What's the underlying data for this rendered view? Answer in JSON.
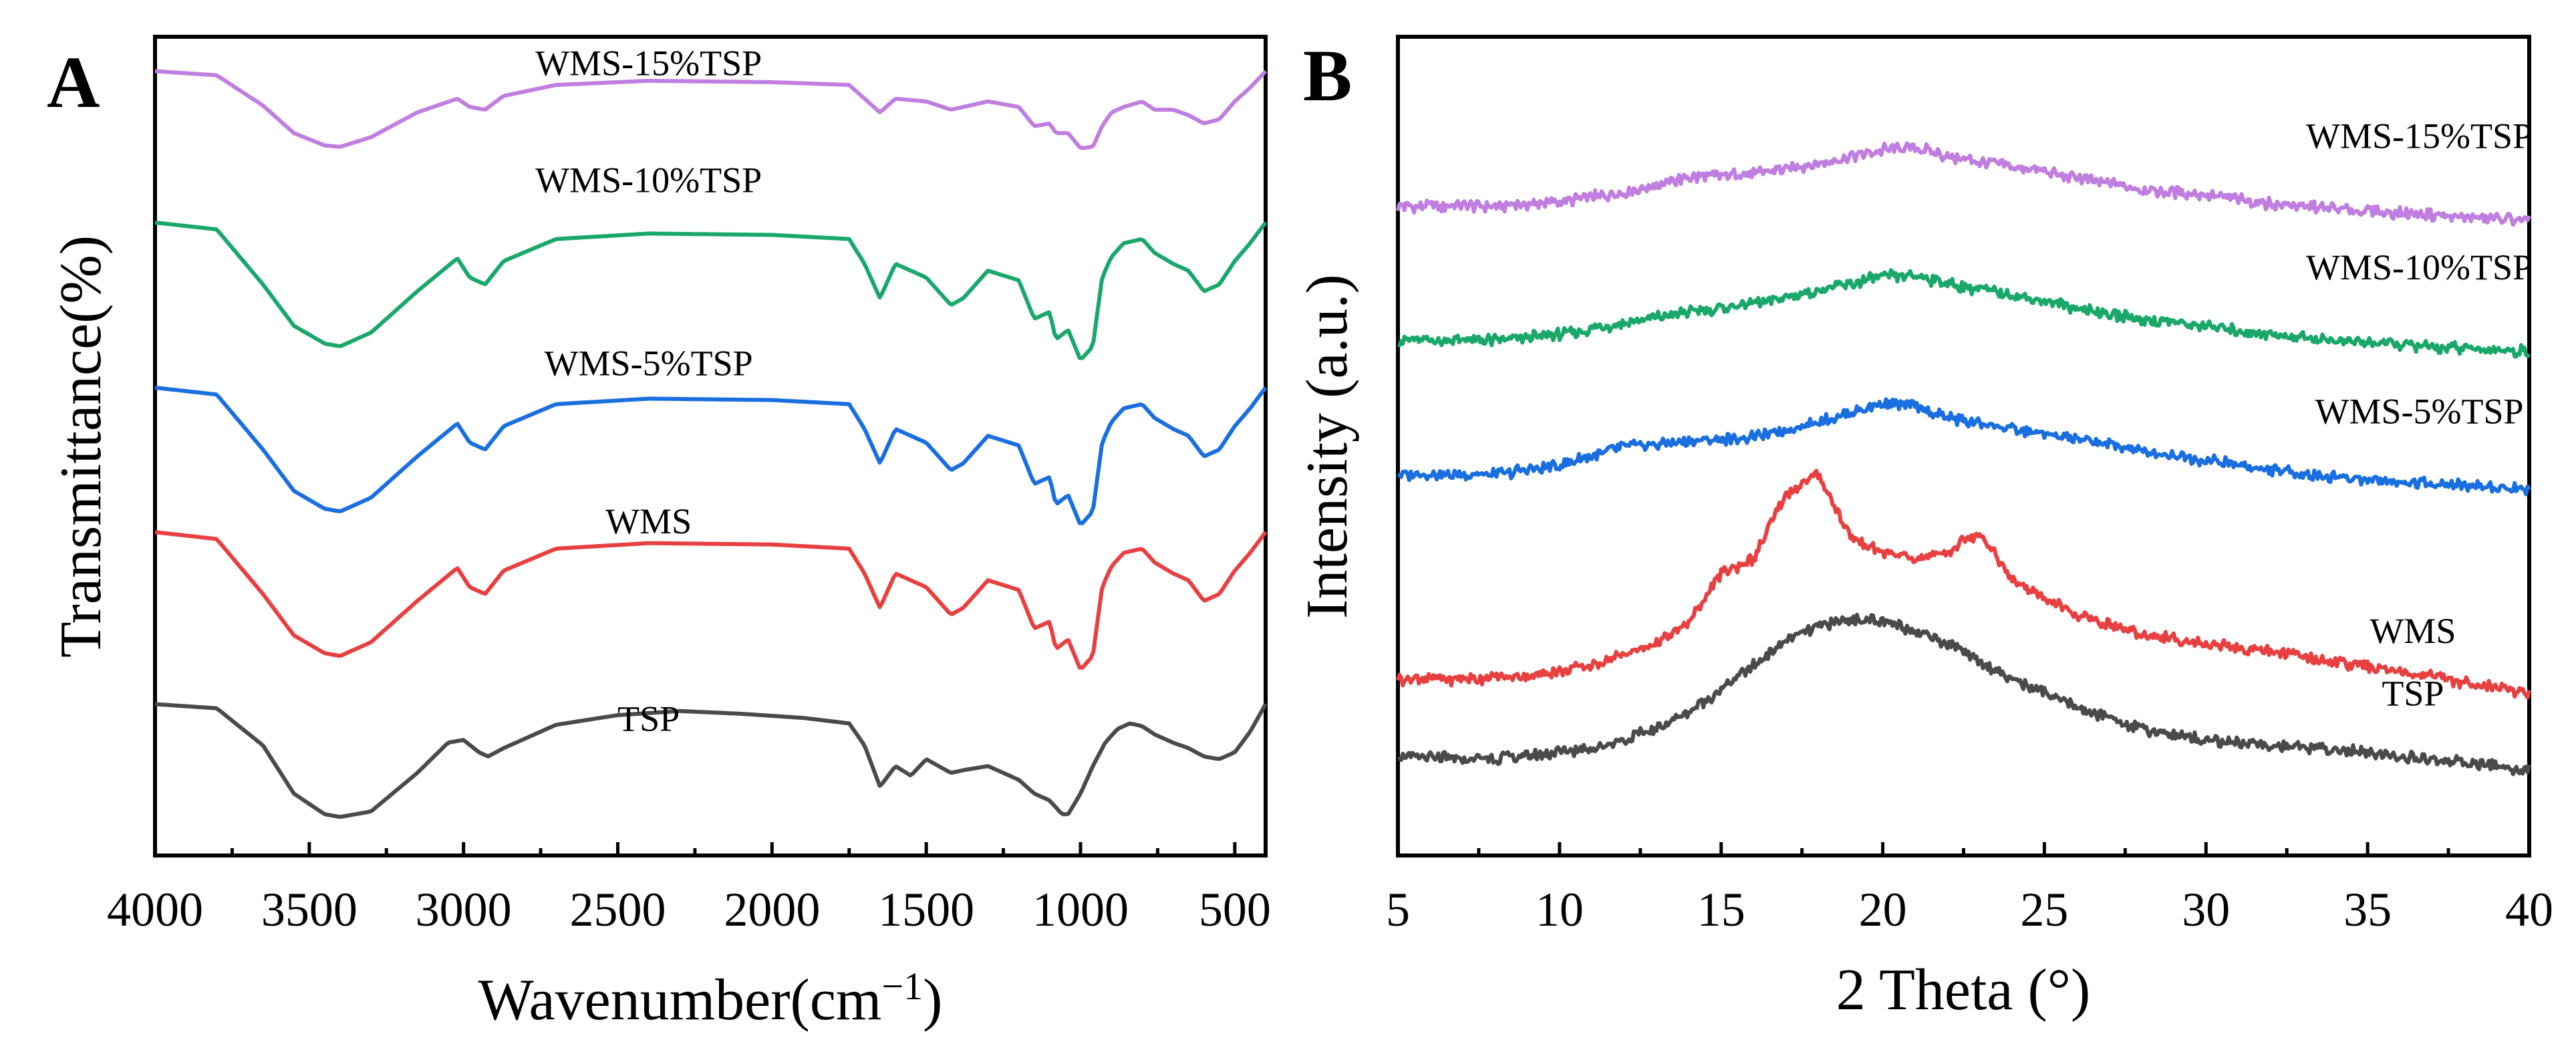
{
  "chart_data": [
    {
      "panel": "A",
      "type": "line",
      "title": "",
      "xlabel": "Wavenumber(cm",
      "xlabel_sup": "−1",
      "xlabel_close": ")",
      "ylabel": "Transmittance(%)",
      "xlim": [
        4000,
        400
      ],
      "x_reversed": true,
      "xticks": [
        4000,
        3500,
        3000,
        2500,
        2000,
        1500,
        1000,
        500
      ],
      "y_ticks_shown": false,
      "series": [
        {
          "name": "WMS-15%TSP",
          "color": "#c07ee0",
          "offset": 4.6,
          "x": [
            4000,
            3800,
            3650,
            3550,
            3450,
            3400,
            3300,
            3150,
            3020,
            2980,
            2930,
            2870,
            2700,
            2400,
            2000,
            1750,
            1700,
            1650,
            1600,
            1500,
            1420,
            1380,
            1300,
            1200,
            1150,
            1100,
            1080,
            1040,
            1000,
            960,
            930,
            900,
            860,
            800,
            760,
            700,
            650,
            600,
            550,
            500,
            450,
            400
          ],
          "y": [
            1.0,
            0.97,
            0.75,
            0.55,
            0.46,
            0.45,
            0.52,
            0.7,
            0.8,
            0.74,
            0.72,
            0.82,
            0.9,
            0.93,
            0.92,
            0.9,
            0.8,
            0.7,
            0.8,
            0.78,
            0.72,
            0.74,
            0.78,
            0.74,
            0.6,
            0.62,
            0.55,
            0.55,
            0.44,
            0.45,
            0.6,
            0.7,
            0.74,
            0.78,
            0.72,
            0.72,
            0.68,
            0.62,
            0.65,
            0.78,
            0.88,
            1.0
          ]
        },
        {
          "name": "WMS-10%TSP",
          "color": "#1aa86a",
          "offset": 3.5,
          "x": [
            4000,
            3800,
            3650,
            3550,
            3450,
            3400,
            3300,
            3150,
            3020,
            2980,
            2930,
            2870,
            2700,
            2400,
            2000,
            1750,
            1700,
            1650,
            1600,
            1500,
            1420,
            1380,
            1300,
            1200,
            1150,
            1100,
            1080,
            1040,
            1000,
            960,
            930,
            900,
            860,
            800,
            760,
            700,
            650,
            600,
            550,
            500,
            450,
            400
          ],
          "y": [
            1.0,
            0.95,
            0.55,
            0.25,
            0.12,
            0.1,
            0.2,
            0.5,
            0.74,
            0.6,
            0.55,
            0.72,
            0.88,
            0.92,
            0.91,
            0.88,
            0.7,
            0.45,
            0.7,
            0.6,
            0.4,
            0.45,
            0.65,
            0.58,
            0.3,
            0.35,
            0.15,
            0.22,
            0.0,
            0.1,
            0.6,
            0.75,
            0.85,
            0.88,
            0.78,
            0.7,
            0.65,
            0.5,
            0.55,
            0.72,
            0.85,
            1.0
          ]
        },
        {
          "name": "WMS-5%TSP",
          "color": "#1a6fe0",
          "offset": 2.3,
          "x": [
            4000,
            3800,
            3650,
            3550,
            3450,
            3400,
            3300,
            3150,
            3020,
            2980,
            2930,
            2870,
            2700,
            2400,
            2000,
            1750,
            1700,
            1650,
            1600,
            1500,
            1420,
            1380,
            1300,
            1200,
            1150,
            1100,
            1080,
            1040,
            1000,
            960,
            930,
            900,
            860,
            800,
            760,
            700,
            650,
            600,
            550,
            500,
            450,
            400
          ],
          "y": [
            1.0,
            0.95,
            0.55,
            0.25,
            0.12,
            0.1,
            0.2,
            0.5,
            0.74,
            0.6,
            0.55,
            0.72,
            0.88,
            0.92,
            0.91,
            0.88,
            0.7,
            0.45,
            0.7,
            0.6,
            0.4,
            0.45,
            0.65,
            0.58,
            0.3,
            0.35,
            0.15,
            0.22,
            0.0,
            0.1,
            0.6,
            0.75,
            0.85,
            0.88,
            0.78,
            0.7,
            0.65,
            0.5,
            0.55,
            0.72,
            0.85,
            1.0
          ]
        },
        {
          "name": "WMS",
          "color": "#e84040",
          "offset": 1.25,
          "x": [
            4000,
            3800,
            3650,
            3550,
            3450,
            3400,
            3300,
            3150,
            3020,
            2980,
            2930,
            2870,
            2700,
            2400,
            2000,
            1750,
            1700,
            1650,
            1600,
            1500,
            1420,
            1380,
            1300,
            1200,
            1150,
            1100,
            1080,
            1040,
            1000,
            960,
            930,
            900,
            860,
            800,
            760,
            700,
            650,
            600,
            550,
            500,
            450,
            400
          ],
          "y": [
            1.0,
            0.95,
            0.55,
            0.25,
            0.12,
            0.1,
            0.2,
            0.5,
            0.74,
            0.6,
            0.55,
            0.72,
            0.88,
            0.92,
            0.91,
            0.88,
            0.7,
            0.45,
            0.7,
            0.6,
            0.4,
            0.45,
            0.65,
            0.58,
            0.3,
            0.35,
            0.15,
            0.22,
            0.0,
            0.1,
            0.6,
            0.75,
            0.85,
            0.88,
            0.78,
            0.7,
            0.65,
            0.5,
            0.55,
            0.72,
            0.85,
            1.0
          ]
        },
        {
          "name": "TSP",
          "color": "#4a4a4a",
          "offset": 0.0,
          "x": [
            4000,
            3800,
            3650,
            3550,
            3450,
            3400,
            3300,
            3150,
            3050,
            3000,
            2950,
            2920,
            2870,
            2700,
            2500,
            2300,
            2100,
            1900,
            1750,
            1700,
            1650,
            1600,
            1550,
            1500,
            1460,
            1420,
            1380,
            1300,
            1200,
            1150,
            1100,
            1060,
            1040,
            1000,
            960,
            920,
            880,
            840,
            800,
            760,
            700,
            650,
            600,
            550,
            500,
            450,
            400
          ],
          "y": [
            1.0,
            0.97,
            0.7,
            0.35,
            0.2,
            0.18,
            0.22,
            0.5,
            0.72,
            0.74,
            0.65,
            0.62,
            0.68,
            0.85,
            0.92,
            0.95,
            0.93,
            0.9,
            0.86,
            0.7,
            0.4,
            0.55,
            0.48,
            0.6,
            0.55,
            0.5,
            0.52,
            0.55,
            0.45,
            0.35,
            0.3,
            0.2,
            0.2,
            0.35,
            0.55,
            0.72,
            0.82,
            0.86,
            0.84,
            0.78,
            0.72,
            0.68,
            0.62,
            0.6,
            0.65,
            0.8,
            1.0
          ]
        }
      ]
    },
    {
      "panel": "B",
      "type": "line",
      "title": "",
      "xlabel": "2 Theta (°)",
      "ylabel": "Intensity (a.u.)",
      "xlim": [
        5,
        40
      ],
      "xticks": [
        5,
        10,
        15,
        20,
        25,
        30,
        35,
        40
      ],
      "y_ticks_shown": false,
      "series": [
        {
          "name": "WMS-15%TSP",
          "color": "#c07ee0",
          "offset": 3.9,
          "x": [
            5,
            8,
            10,
            12,
            14,
            16,
            18,
            20,
            21,
            22,
            24,
            26,
            28,
            30,
            32,
            34,
            36,
            38,
            40
          ],
          "y": [
            0.1,
            0.1,
            0.13,
            0.2,
            0.3,
            0.33,
            0.4,
            0.5,
            0.52,
            0.45,
            0.38,
            0.3,
            0.22,
            0.18,
            0.12,
            0.08,
            0.05,
            0.02,
            0.0
          ]
        },
        {
          "name": "WMS-10%TSP",
          "color": "#1aa86a",
          "offset": 2.95,
          "x": [
            5,
            8,
            10,
            12,
            14,
            16,
            18,
            20,
            21,
            22,
            24,
            26,
            28,
            30,
            32,
            34,
            36,
            38,
            40
          ],
          "y": [
            0.1,
            0.1,
            0.14,
            0.22,
            0.3,
            0.36,
            0.45,
            0.55,
            0.56,
            0.5,
            0.42,
            0.33,
            0.25,
            0.2,
            0.14,
            0.1,
            0.07,
            0.04,
            0.02
          ]
        },
        {
          "name": "WMS-5%TSP",
          "color": "#1a6fe0",
          "offset": 2.0,
          "x": [
            5,
            8,
            10,
            12,
            14,
            16,
            18,
            20,
            21,
            22,
            24,
            26,
            28,
            30,
            32,
            34,
            36,
            38,
            40
          ],
          "y": [
            0.1,
            0.1,
            0.16,
            0.3,
            0.33,
            0.36,
            0.47,
            0.6,
            0.58,
            0.5,
            0.42,
            0.35,
            0.27,
            0.2,
            0.13,
            0.08,
            0.05,
            0.02,
            0.0
          ]
        },
        {
          "name": "WMS",
          "color": "#e84040",
          "offset": 0.55,
          "x": [
            5,
            7,
            9,
            11,
            12,
            13,
            14,
            15,
            16,
            17,
            18,
            19,
            20,
            21,
            22,
            23,
            24,
            26,
            28,
            30,
            32,
            34,
            36,
            38,
            40
          ],
          "y": [
            0.1,
            0.1,
            0.12,
            0.2,
            0.28,
            0.35,
            0.5,
            0.85,
            0.95,
            1.4,
            1.55,
            1.1,
            1.0,
            0.95,
            1.0,
            1.15,
            0.8,
            0.55,
            0.42,
            0.35,
            0.3,
            0.22,
            0.15,
            0.08,
            0.0
          ]
        },
        {
          "name": "TSP",
          "color": "#4a4a4a",
          "offset": 0.0,
          "x": [
            5,
            7,
            9,
            11,
            12,
            13,
            14,
            15,
            16,
            17,
            18,
            19,
            20,
            21,
            22,
            23,
            24,
            26,
            28,
            30,
            32,
            34,
            36,
            38,
            40
          ],
          "y": [
            0.1,
            0.08,
            0.1,
            0.16,
            0.22,
            0.3,
            0.42,
            0.58,
            0.75,
            0.92,
            1.02,
            1.08,
            1.05,
            1.0,
            0.9,
            0.78,
            0.65,
            0.45,
            0.3,
            0.22,
            0.18,
            0.15,
            0.1,
            0.06,
            0.0
          ]
        }
      ]
    }
  ]
}
